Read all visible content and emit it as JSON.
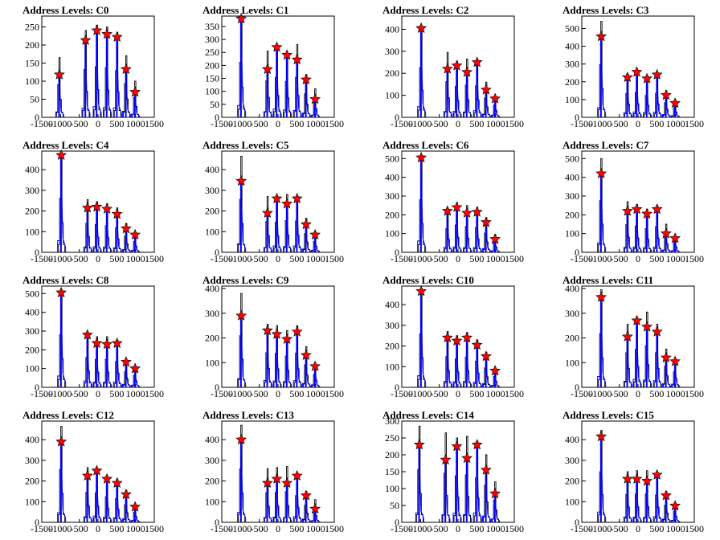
{
  "chart_data": [
    {
      "type": "line",
      "title": "Address Levels: C0",
      "x_ticks": [
        -1500,
        -1000,
        -500,
        0,
        500,
        1000,
        1500
      ],
      "y_ticks": [
        0,
        50,
        100,
        150,
        200,
        250
      ],
      "ylim": [
        0,
        280
      ],
      "xlim": [
        -1500,
        1500
      ],
      "peaks": [
        {
          "x": -1000,
          "black": 165,
          "blue": 125,
          "marker": 118
        },
        {
          "x": -300,
          "black": 240,
          "blue": 210,
          "marker": 213
        },
        {
          "x": 0,
          "black": 255,
          "blue": 245,
          "marker": 240
        },
        {
          "x": 270,
          "black": 250,
          "blue": 225,
          "marker": 230
        },
        {
          "x": 540,
          "black": 235,
          "blue": 220,
          "marker": 222
        },
        {
          "x": 780,
          "black": 170,
          "blue": 140,
          "marker": 133
        },
        {
          "x": 1020,
          "black": 100,
          "blue": 72,
          "marker": 70
        }
      ]
    },
    {
      "type": "line",
      "title": "Address Levels: C1",
      "x_ticks": [
        -1500,
        -1000,
        -500,
        0,
        500,
        1000,
        1500
      ],
      "y_ticks": [
        0,
        50,
        100,
        150,
        200,
        250,
        300,
        350
      ],
      "ylim": [
        0,
        390
      ],
      "xlim": [
        -1500,
        1500
      ],
      "peaks": [
        {
          "x": -950,
          "black": 385,
          "blue": 380,
          "marker": 380
        },
        {
          "x": -250,
          "black": 255,
          "blue": 180,
          "marker": 185
        },
        {
          "x": 0,
          "black": 280,
          "blue": 265,
          "marker": 270
        },
        {
          "x": 270,
          "black": 250,
          "blue": 235,
          "marker": 240
        },
        {
          "x": 540,
          "black": 280,
          "blue": 220,
          "marker": 222
        },
        {
          "x": 780,
          "black": 165,
          "blue": 140,
          "marker": 145
        },
        {
          "x": 1020,
          "black": 110,
          "blue": 70,
          "marker": 70
        }
      ]
    },
    {
      "type": "line",
      "title": "Address Levels: C2",
      "x_ticks": [
        -1500,
        -1000,
        -500,
        0,
        500,
        1000,
        1500
      ],
      "y_ticks": [
        0,
        100,
        200,
        300,
        400
      ],
      "ylim": [
        0,
        460
      ],
      "xlim": [
        -1500,
        1500
      ],
      "peaks": [
        {
          "x": -950,
          "black": 410,
          "blue": 405,
          "marker": 405
        },
        {
          "x": -250,
          "black": 295,
          "blue": 215,
          "marker": 220
        },
        {
          "x": 0,
          "black": 255,
          "blue": 230,
          "marker": 235
        },
        {
          "x": 270,
          "black": 265,
          "blue": 200,
          "marker": 205
        },
        {
          "x": 540,
          "black": 260,
          "blue": 250,
          "marker": 250
        },
        {
          "x": 780,
          "black": 160,
          "blue": 120,
          "marker": 125
        },
        {
          "x": 1020,
          "black": 100,
          "blue": 85,
          "marker": 85
        }
      ]
    },
    {
      "type": "line",
      "title": "Address Levels: C3",
      "x_ticks": [
        -1500,
        -1000,
        -500,
        0,
        500,
        1000,
        1500
      ],
      "y_ticks": [
        0,
        100,
        200,
        300,
        400,
        500
      ],
      "ylim": [
        0,
        570
      ],
      "xlim": [
        -1500,
        1500
      ],
      "peaks": [
        {
          "x": -950,
          "black": 540,
          "blue": 450,
          "marker": 455
        },
        {
          "x": -250,
          "black": 245,
          "blue": 225,
          "marker": 225
        },
        {
          "x": 0,
          "black": 255,
          "blue": 250,
          "marker": 255
        },
        {
          "x": 270,
          "black": 225,
          "blue": 220,
          "marker": 218
        },
        {
          "x": 540,
          "black": 245,
          "blue": 240,
          "marker": 240
        },
        {
          "x": 780,
          "black": 150,
          "blue": 125,
          "marker": 125
        },
        {
          "x": 1020,
          "black": 95,
          "blue": 80,
          "marker": 80
        }
      ]
    },
    {
      "type": "line",
      "title": "Address Levels: C4",
      "x_ticks": [
        -1500,
        -1000,
        -500,
        0,
        500,
        1000,
        1500
      ],
      "y_ticks": [
        0,
        100,
        200,
        300,
        400
      ],
      "ylim": [
        0,
        490
      ],
      "xlim": [
        -1500,
        1500
      ],
      "peaks": [
        {
          "x": -950,
          "black": 475,
          "blue": 470,
          "marker": 470
        },
        {
          "x": -250,
          "black": 255,
          "blue": 215,
          "marker": 215
        },
        {
          "x": 0,
          "black": 245,
          "blue": 225,
          "marker": 220
        },
        {
          "x": 270,
          "black": 235,
          "blue": 210,
          "marker": 210
        },
        {
          "x": 540,
          "black": 215,
          "blue": 185,
          "marker": 185
        },
        {
          "x": 780,
          "black": 140,
          "blue": 110,
          "marker": 115
        },
        {
          "x": 1020,
          "black": 95,
          "blue": 85,
          "marker": 85
        }
      ]
    },
    {
      "type": "line",
      "title": "Address Levels: C5",
      "x_ticks": [
        -1500,
        -1000,
        -500,
        0,
        500,
        1000,
        1500
      ],
      "y_ticks": [
        0,
        100,
        200,
        300,
        400
      ],
      "ylim": [
        0,
        490
      ],
      "xlim": [
        -1500,
        1500
      ],
      "peaks": [
        {
          "x": -950,
          "black": 465,
          "blue": 345,
          "marker": 345
        },
        {
          "x": -250,
          "black": 270,
          "blue": 190,
          "marker": 190
        },
        {
          "x": 0,
          "black": 265,
          "blue": 260,
          "marker": 260
        },
        {
          "x": 270,
          "black": 280,
          "blue": 235,
          "marker": 235
        },
        {
          "x": 540,
          "black": 275,
          "blue": 260,
          "marker": 260
        },
        {
          "x": 780,
          "black": 165,
          "blue": 135,
          "marker": 135
        },
        {
          "x": 1020,
          "black": 95,
          "blue": 85,
          "marker": 85
        }
      ]
    },
    {
      "type": "line",
      "title": "Address Levels: C6",
      "x_ticks": [
        -1500,
        -1000,
        -500,
        0,
        500,
        1000,
        1500
      ],
      "y_ticks": [
        0,
        100,
        200,
        300,
        400,
        500
      ],
      "ylim": [
        0,
        540
      ],
      "xlim": [
        -1500,
        1500
      ],
      "peaks": [
        {
          "x": -950,
          "black": 510,
          "blue": 505,
          "marker": 505
        },
        {
          "x": -250,
          "black": 230,
          "blue": 220,
          "marker": 220
        },
        {
          "x": 0,
          "black": 265,
          "blue": 240,
          "marker": 240
        },
        {
          "x": 270,
          "black": 250,
          "blue": 210,
          "marker": 210
        },
        {
          "x": 540,
          "black": 240,
          "blue": 215,
          "marker": 215
        },
        {
          "x": 780,
          "black": 185,
          "blue": 160,
          "marker": 160
        },
        {
          "x": 1020,
          "black": 95,
          "blue": 70,
          "marker": 70
        }
      ]
    },
    {
      "type": "line",
      "title": "Address Levels: C7",
      "x_ticks": [
        -1500,
        -1000,
        -500,
        0,
        500,
        1000,
        1500
      ],
      "y_ticks": [
        0,
        100,
        200,
        300,
        400,
        500
      ],
      "ylim": [
        0,
        540
      ],
      "xlim": [
        -1500,
        1500
      ],
      "peaks": [
        {
          "x": -950,
          "black": 500,
          "blue": 420,
          "marker": 420
        },
        {
          "x": -250,
          "black": 270,
          "blue": 220,
          "marker": 220
        },
        {
          "x": 0,
          "black": 255,
          "blue": 230,
          "marker": 230
        },
        {
          "x": 270,
          "black": 230,
          "blue": 205,
          "marker": 205
        },
        {
          "x": 540,
          "black": 250,
          "blue": 230,
          "marker": 230
        },
        {
          "x": 780,
          "black": 150,
          "blue": 100,
          "marker": 100
        },
        {
          "x": 1020,
          "black": 95,
          "blue": 75,
          "marker": 75
        }
      ]
    },
    {
      "type": "line",
      "title": "Address Levels: C8",
      "x_ticks": [
        -1500,
        -1000,
        -500,
        0,
        500,
        1000,
        1500
      ],
      "y_ticks": [
        0,
        100,
        200,
        300,
        400,
        500
      ],
      "ylim": [
        0,
        540
      ],
      "xlim": [
        -1500,
        1500
      ],
      "peaks": [
        {
          "x": -950,
          "black": 510,
          "blue": 505,
          "marker": 505
        },
        {
          "x": -250,
          "black": 290,
          "blue": 280,
          "marker": 280
        },
        {
          "x": 0,
          "black": 270,
          "blue": 235,
          "marker": 235
        },
        {
          "x": 270,
          "black": 270,
          "blue": 230,
          "marker": 230
        },
        {
          "x": 540,
          "black": 250,
          "blue": 235,
          "marker": 235
        },
        {
          "x": 780,
          "black": 150,
          "blue": 135,
          "marker": 135
        },
        {
          "x": 1020,
          "black": 115,
          "blue": 100,
          "marker": 100
        }
      ]
    },
    {
      "type": "line",
      "title": "Address Levels: C9",
      "x_ticks": [
        -1500,
        -1000,
        -500,
        0,
        500,
        1000,
        1500
      ],
      "y_ticks": [
        0,
        100,
        200,
        300,
        400
      ],
      "ylim": [
        0,
        410
      ],
      "xlim": [
        -1500,
        1500
      ],
      "peaks": [
        {
          "x": -950,
          "black": 380,
          "blue": 295,
          "marker": 290
        },
        {
          "x": -250,
          "black": 255,
          "blue": 230,
          "marker": 230
        },
        {
          "x": 0,
          "black": 250,
          "blue": 215,
          "marker": 215
        },
        {
          "x": 270,
          "black": 230,
          "blue": 195,
          "marker": 195
        },
        {
          "x": 540,
          "black": 250,
          "blue": 225,
          "marker": 225
        },
        {
          "x": 780,
          "black": 165,
          "blue": 130,
          "marker": 130
        },
        {
          "x": 1020,
          "black": 95,
          "blue": 85,
          "marker": 85
        }
      ]
    },
    {
      "type": "line",
      "title": "Address Levels: C10",
      "x_ticks": [
        -1500,
        -1000,
        -500,
        0,
        500,
        1000,
        1500
      ],
      "y_ticks": [
        0,
        100,
        200,
        300,
        400
      ],
      "ylim": [
        0,
        490
      ],
      "xlim": [
        -1500,
        1500
      ],
      "peaks": [
        {
          "x": -950,
          "black": 470,
          "blue": 465,
          "marker": 465
        },
        {
          "x": -250,
          "black": 270,
          "blue": 240,
          "marker": 240
        },
        {
          "x": 0,
          "black": 250,
          "blue": 225,
          "marker": 225
        },
        {
          "x": 270,
          "black": 265,
          "blue": 240,
          "marker": 240
        },
        {
          "x": 540,
          "black": 230,
          "blue": 205,
          "marker": 205
        },
        {
          "x": 780,
          "black": 170,
          "blue": 150,
          "marker": 150
        },
        {
          "x": 1020,
          "black": 95,
          "blue": 80,
          "marker": 80
        }
      ]
    },
    {
      "type": "line",
      "title": "Address Levels: C11",
      "x_ticks": [
        -1500,
        -1000,
        -500,
        0,
        500,
        1000,
        1500
      ],
      "y_ticks": [
        0,
        100,
        200,
        300,
        400
      ],
      "ylim": [
        0,
        410
      ],
      "xlim": [
        -1500,
        1500
      ],
      "peaks": [
        {
          "x": -950,
          "black": 395,
          "blue": 365,
          "marker": 365
        },
        {
          "x": -250,
          "black": 255,
          "blue": 205,
          "marker": 205
        },
        {
          "x": 0,
          "black": 280,
          "blue": 270,
          "marker": 270
        },
        {
          "x": 270,
          "black": 305,
          "blue": 245,
          "marker": 245
        },
        {
          "x": 540,
          "black": 255,
          "blue": 225,
          "marker": 225
        },
        {
          "x": 780,
          "black": 155,
          "blue": 120,
          "marker": 120
        },
        {
          "x": 1020,
          "black": 115,
          "blue": 105,
          "marker": 105
        }
      ]
    },
    {
      "type": "line",
      "title": "Address Levels: C12",
      "x_ticks": [
        -1500,
        -1000,
        -500,
        0,
        500,
        1000,
        1500
      ],
      "y_ticks": [
        0,
        100,
        200,
        300,
        400
      ],
      "ylim": [
        0,
        490
      ],
      "xlim": [
        -1500,
        1500
      ],
      "peaks": [
        {
          "x": -950,
          "black": 465,
          "blue": 390,
          "marker": 390
        },
        {
          "x": -250,
          "black": 265,
          "blue": 225,
          "marker": 225
        },
        {
          "x": 0,
          "black": 260,
          "blue": 250,
          "marker": 250
        },
        {
          "x": 270,
          "black": 225,
          "blue": 210,
          "marker": 210
        },
        {
          "x": 540,
          "black": 210,
          "blue": 190,
          "marker": 190
        },
        {
          "x": 780,
          "black": 155,
          "blue": 135,
          "marker": 135
        },
        {
          "x": 1020,
          "black": 90,
          "blue": 75,
          "marker": 75
        }
      ]
    },
    {
      "type": "line",
      "title": "Address Levels: C13",
      "x_ticks": [
        -1500,
        -1000,
        -500,
        0,
        500,
        1000,
        1500
      ],
      "y_ticks": [
        0,
        100,
        200,
        300,
        400
      ],
      "ylim": [
        0,
        490
      ],
      "xlim": [
        -1500,
        1500
      ],
      "peaks": [
        {
          "x": -950,
          "black": 470,
          "blue": 400,
          "marker": 400
        },
        {
          "x": -250,
          "black": 260,
          "blue": 190,
          "marker": 190
        },
        {
          "x": 0,
          "black": 265,
          "blue": 210,
          "marker": 210
        },
        {
          "x": 270,
          "black": 270,
          "blue": 190,
          "marker": 190
        },
        {
          "x": 540,
          "black": 235,
          "blue": 225,
          "marker": 225
        },
        {
          "x": 780,
          "black": 150,
          "blue": 130,
          "marker": 130
        },
        {
          "x": 1020,
          "black": 110,
          "blue": 65,
          "marker": 65
        }
      ]
    },
    {
      "type": "line",
      "title": "Address Levels: C14",
      "x_ticks": [
        -1500,
        -1000,
        -500,
        0,
        500,
        1000,
        1500
      ],
      "y_ticks": [
        0,
        50,
        100,
        150,
        200,
        250,
        300
      ],
      "ylim": [
        0,
        300
      ],
      "xlim": [
        -1500,
        1500
      ],
      "peaks": [
        {
          "x": -1000,
          "black": 285,
          "blue": 230,
          "marker": 230
        },
        {
          "x": -300,
          "black": 265,
          "blue": 185,
          "marker": 185
        },
        {
          "x": 0,
          "black": 250,
          "blue": 225,
          "marker": 225
        },
        {
          "x": 270,
          "black": 255,
          "blue": 190,
          "marker": 190
        },
        {
          "x": 540,
          "black": 240,
          "blue": 230,
          "marker": 230
        },
        {
          "x": 780,
          "black": 200,
          "blue": 155,
          "marker": 155
        },
        {
          "x": 1020,
          "black": 120,
          "blue": 85,
          "marker": 85
        }
      ]
    },
    {
      "type": "line",
      "title": "Address Levels: C15",
      "x_ticks": [
        -1500,
        -1000,
        -500,
        0,
        500,
        1000,
        1500
      ],
      "y_ticks": [
        0,
        100,
        200,
        300,
        400
      ],
      "ylim": [
        0,
        490
      ],
      "xlim": [
        -1500,
        1500
      ],
      "peaks": [
        {
          "x": -950,
          "black": 445,
          "blue": 415,
          "marker": 415
        },
        {
          "x": -250,
          "black": 245,
          "blue": 210,
          "marker": 210
        },
        {
          "x": 0,
          "black": 250,
          "blue": 210,
          "marker": 210
        },
        {
          "x": 270,
          "black": 250,
          "blue": 200,
          "marker": 200
        },
        {
          "x": 540,
          "black": 240,
          "blue": 230,
          "marker": 230
        },
        {
          "x": 780,
          "black": 150,
          "blue": 130,
          "marker": 130
        },
        {
          "x": 1020,
          "black": 95,
          "blue": 80,
          "marker": 80
        }
      ]
    }
  ],
  "colors": {
    "black_trace": "#000000",
    "blue_fill": "#0000ff",
    "marker": "#ff0000",
    "marker_edge": "#000000"
  }
}
